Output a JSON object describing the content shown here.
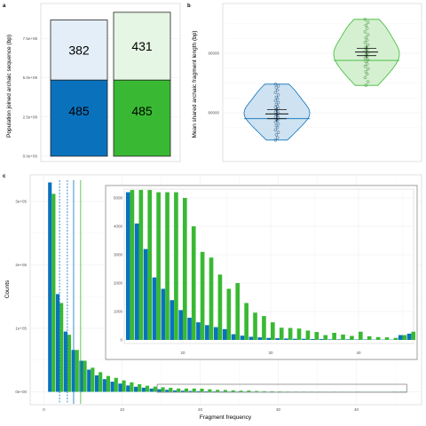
{
  "colors": {
    "blue": "#0a72bd",
    "green": "#39b933",
    "blue_light": "#e3eef8",
    "green_light": "#e6f6e4",
    "blue_violin": "#cfe2f1",
    "green_violin": "#d5f0d1",
    "grid": "#ebebeb",
    "panel_border": "#cccccc",
    "inset_border": "#888888"
  },
  "chart_data": [
    {
      "panel": "a",
      "type": "bar",
      "ylabel": "Population joined archaic sequence (bp)",
      "yticks": [
        "0.0e+00",
        "2.5e+08",
        "5.0e+08",
        "7.5e+08"
      ],
      "ytick_values": [
        0,
        250000000,
        500000000,
        750000000
      ],
      "ylim": [
        0,
        950000000
      ],
      "series": [
        {
          "color": "blue",
          "lower_value": 485000000,
          "upper_value": 382000000,
          "lower_label": "485",
          "upper_label": "382"
        },
        {
          "color": "green",
          "lower_value": 485000000,
          "upper_value": 431000000,
          "lower_label": "485",
          "upper_label": "431"
        }
      ]
    },
    {
      "panel": "b",
      "type": "violin",
      "ylabel": "Mean shared archaic fragment length (bp)",
      "yticks": [
        "80000",
        "90000"
      ],
      "ytick_values": [
        80000,
        90000
      ],
      "ylim": [
        74000,
        96500
      ],
      "groups": [
        {
          "color": "blue",
          "median": 79000,
          "mean": 79800,
          "ci": [
            79000,
            80500
          ],
          "points": [
            84800,
            84500,
            84200,
            83800,
            83400,
            83000,
            82600,
            82300,
            82000,
            81700,
            81400,
            81100,
            80900,
            80700,
            80500,
            80300,
            80100,
            79900,
            79700,
            79500,
            79300,
            79100,
            78900,
            78700,
            78400,
            78100,
            77800,
            77500,
            77100,
            76700,
            76300,
            75800,
            75400
          ]
        },
        {
          "color": "green",
          "median": 88800,
          "mean": 90200,
          "ci": [
            89600,
            90800
          ],
          "points": [
            95700,
            95200,
            94700,
            94200,
            93600,
            93100,
            92600,
            92200,
            91800,
            91400,
            91000,
            90700,
            90400,
            90100,
            89800,
            89500,
            89200,
            88900,
            88600,
            88200,
            87800,
            87400,
            86900,
            86500,
            85900,
            85200,
            84600
          ]
        }
      ]
    },
    {
      "panel": "c",
      "type": "bar",
      "xlabel": "Fragment frequency",
      "ylabel": "Counts",
      "xticks": [
        "0",
        "10",
        "20",
        "30",
        "40"
      ],
      "xtick_values": [
        0,
        10,
        20,
        30,
        40
      ],
      "yticks": [
        "0e+00",
        "1e+05",
        "2e+05",
        "3e+05"
      ],
      "ytick_values": [
        0,
        100000,
        200000,
        300000
      ],
      "xlim": [
        -1.8,
        48.2
      ],
      "ylim": [
        -5000,
        332000
      ],
      "vlines": [
        {
          "x": 2.0,
          "color": "blue",
          "dashed": true
        },
        {
          "x": 3.0,
          "color": "blue",
          "dashed": true
        },
        {
          "x": 3.8,
          "color": "blue",
          "dashed": false
        },
        {
          "x": 4.7,
          "color": "green",
          "dashed": false
        }
      ],
      "x": [
        1,
        2,
        3,
        4,
        5,
        6,
        7,
        8,
        9,
        10,
        11,
        12,
        13,
        14,
        15,
        16,
        17,
        18,
        19,
        20,
        21,
        22,
        23,
        24,
        25,
        26,
        27,
        28,
        29,
        30,
        31,
        32,
        33,
        34,
        35,
        36,
        37,
        38,
        39,
        40,
        41,
        42,
        43,
        44,
        45,
        46
      ],
      "series": [
        {
          "color": "blue",
          "values": [
            330000,
            154000,
            95000,
            66000,
            49000,
            35000,
            26000,
            20000,
            16000,
            13000,
            10000,
            8000,
            6500,
            5200,
            4100,
            3200,
            2200,
            1800,
            1400,
            1050,
            780,
            620,
            520,
            450,
            380,
            200,
            150,
            110,
            90,
            70,
            60,
            50,
            40,
            40,
            30,
            30,
            20,
            20,
            20,
            15,
            15,
            10,
            10,
            10,
            170,
            220
          ]
        },
        {
          "color": "green",
          "values": [
            312000,
            140000,
            90000,
            66000,
            49000,
            38000,
            31000,
            25000,
            22000,
            18000,
            15000,
            12000,
            9600,
            8200,
            7200,
            6400,
            5200,
            5200,
            5200,
            5000,
            4000,
            3100,
            2900,
            2300,
            1800,
            2000,
            1300,
            960,
            840,
            620,
            430,
            420,
            400,
            330,
            280,
            170,
            250,
            190,
            140,
            290,
            130,
            100,
            90,
            70,
            170,
            290
          ]
        }
      ],
      "inset": {
        "xticks": [
          "20",
          "30",
          "40"
        ],
        "xtick_values": [
          20,
          30,
          40
        ],
        "yticks": [
          "0",
          "1000",
          "2000",
          "3000",
          "4000",
          "5000"
        ],
        "ytick_values": [
          0,
          1000,
          2000,
          3000,
          4000,
          5000
        ],
        "xlim": [
          13.3,
          46.6
        ],
        "ylim": [
          -180,
          5280
        ],
        "x_from": 14
      }
    }
  ]
}
